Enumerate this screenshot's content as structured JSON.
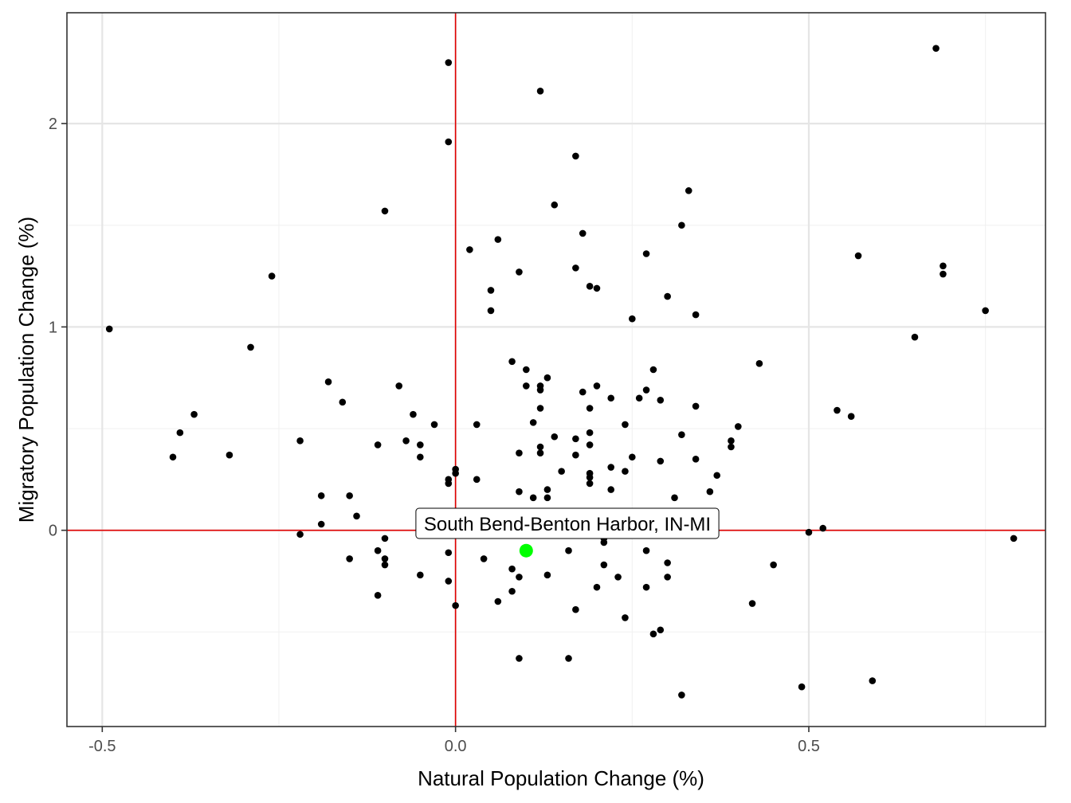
{
  "chart_data": {
    "type": "scatter",
    "xlabel": "Natural Population Change (%)",
    "ylabel": "Migratory Population Change (%)",
    "xlim": [
      -0.55,
      0.835
    ],
    "ylim": [
      -0.965,
      2.545
    ],
    "x_ticks": [
      -0.5,
      0.0,
      0.5
    ],
    "x_tick_labels": [
      "-0.5",
      "0.0",
      "0.5"
    ],
    "y_ticks": [
      0,
      1,
      2
    ],
    "y_tick_labels": [
      "0",
      "1",
      "2"
    ],
    "x_minor_ticks": [
      -0.25,
      0.25,
      0.75
    ],
    "y_minor_ticks": [
      -0.5,
      0.5,
      1.5
    ],
    "grid": true,
    "reference_lines": {
      "x": 0,
      "y": 0,
      "color": "#e00000"
    },
    "point_color": "#000000",
    "highlight": {
      "label": "South Bend-Benton Harbor, IN-MI",
      "x": 0.1,
      "y": -0.1,
      "color": "#00ff00"
    },
    "points": [
      [
        0.68,
        2.37
      ],
      [
        -0.01,
        2.3
      ],
      [
        0.12,
        2.16
      ],
      [
        -0.01,
        1.91
      ],
      [
        0.17,
        1.84
      ],
      [
        0.33,
        1.67
      ],
      [
        0.14,
        1.6
      ],
      [
        -0.1,
        1.57
      ],
      [
        0.32,
        1.5
      ],
      [
        0.18,
        1.46
      ],
      [
        0.06,
        1.43
      ],
      [
        0.02,
        1.38
      ],
      [
        0.27,
        1.36
      ],
      [
        0.57,
        1.35
      ],
      [
        0.69,
        1.3
      ],
      [
        0.17,
        1.29
      ],
      [
        0.09,
        1.27
      ],
      [
        0.69,
        1.26
      ],
      [
        -0.26,
        1.25
      ],
      [
        0.19,
        1.2
      ],
      [
        0.2,
        1.19
      ],
      [
        0.05,
        1.18
      ],
      [
        0.3,
        1.15
      ],
      [
        0.75,
        1.08
      ],
      [
        0.05,
        1.08
      ],
      [
        0.34,
        1.06
      ],
      [
        0.25,
        1.04
      ],
      [
        -0.49,
        0.99
      ],
      [
        0.65,
        0.95
      ],
      [
        -0.29,
        0.9
      ],
      [
        0.08,
        0.83
      ],
      [
        0.43,
        0.82
      ],
      [
        0.1,
        0.79
      ],
      [
        0.28,
        0.79
      ],
      [
        0.13,
        0.75
      ],
      [
        -0.18,
        0.73
      ],
      [
        0.1,
        0.71
      ],
      [
        0.12,
        0.71
      ],
      [
        0.2,
        0.71
      ],
      [
        -0.08,
        0.71
      ],
      [
        0.12,
        0.69
      ],
      [
        0.27,
        0.69
      ],
      [
        0.18,
        0.68
      ],
      [
        0.22,
        0.65
      ],
      [
        0.26,
        0.65
      ],
      [
        0.29,
        0.64
      ],
      [
        -0.16,
        0.63
      ],
      [
        0.34,
        0.61
      ],
      [
        0.12,
        0.6
      ],
      [
        0.19,
        0.6
      ],
      [
        0.54,
        0.59
      ],
      [
        -0.37,
        0.57
      ],
      [
        -0.06,
        0.57
      ],
      [
        0.56,
        0.56
      ],
      [
        0.11,
        0.53
      ],
      [
        -0.03,
        0.52
      ],
      [
        0.03,
        0.52
      ],
      [
        0.24,
        0.52
      ],
      [
        0.4,
        0.51
      ],
      [
        -0.39,
        0.48
      ],
      [
        0.19,
        0.48
      ],
      [
        0.32,
        0.47
      ],
      [
        0.14,
        0.46
      ],
      [
        0.17,
        0.45
      ],
      [
        -0.22,
        0.44
      ],
      [
        -0.07,
        0.44
      ],
      [
        0.39,
        0.44
      ],
      [
        -0.11,
        0.42
      ],
      [
        -0.05,
        0.42
      ],
      [
        0.19,
        0.42
      ],
      [
        0.12,
        0.41
      ],
      [
        0.39,
        0.41
      ],
      [
        0.09,
        0.38
      ],
      [
        0.12,
        0.38
      ],
      [
        -0.32,
        0.37
      ],
      [
        0.17,
        0.37
      ],
      [
        -0.4,
        0.36
      ],
      [
        -0.05,
        0.36
      ],
      [
        0.25,
        0.36
      ],
      [
        0.34,
        0.35
      ],
      [
        0.29,
        0.34
      ],
      [
        0.22,
        0.31
      ],
      [
        0.0,
        0.3
      ],
      [
        0.15,
        0.29
      ],
      [
        0.24,
        0.29
      ],
      [
        0.0,
        0.28
      ],
      [
        0.19,
        0.28
      ],
      [
        0.37,
        0.27
      ],
      [
        0.19,
        0.26
      ],
      [
        -0.01,
        0.25
      ],
      [
        0.03,
        0.25
      ],
      [
        -0.01,
        0.23
      ],
      [
        0.19,
        0.23
      ],
      [
        0.13,
        0.2
      ],
      [
        0.22,
        0.2
      ],
      [
        0.09,
        0.19
      ],
      [
        0.36,
        0.19
      ],
      [
        -0.19,
        0.17
      ],
      [
        -0.15,
        0.17
      ],
      [
        0.11,
        0.16
      ],
      [
        0.13,
        0.16
      ],
      [
        0.31,
        0.16
      ],
      [
        -0.14,
        0.07
      ],
      [
        -0.19,
        0.03
      ],
      [
        0.52,
        0.01
      ],
      [
        -0.22,
        -0.02
      ],
      [
        0.5,
        -0.01
      ],
      [
        -0.1,
        -0.04
      ],
      [
        0.21,
        -0.04
      ],
      [
        0.79,
        -0.04
      ],
      [
        0.21,
        -0.06
      ],
      [
        -0.11,
        -0.1
      ],
      [
        -0.01,
        -0.11
      ],
      [
        0.16,
        -0.1
      ],
      [
        0.27,
        -0.1
      ],
      [
        -0.15,
        -0.14
      ],
      [
        0.04,
        -0.14
      ],
      [
        -0.1,
        -0.14
      ],
      [
        -0.1,
        -0.17
      ],
      [
        0.21,
        -0.17
      ],
      [
        0.3,
        -0.16
      ],
      [
        0.45,
        -0.17
      ],
      [
        0.08,
        -0.19
      ],
      [
        -0.05,
        -0.22
      ],
      [
        0.09,
        -0.23
      ],
      [
        0.13,
        -0.22
      ],
      [
        0.23,
        -0.23
      ],
      [
        -0.01,
        -0.25
      ],
      [
        0.3,
        -0.23
      ],
      [
        0.27,
        -0.28
      ],
      [
        0.08,
        -0.3
      ],
      [
        0.2,
        -0.28
      ],
      [
        -0.11,
        -0.32
      ],
      [
        0.06,
        -0.35
      ],
      [
        0.0,
        -0.37
      ],
      [
        0.42,
        -0.36
      ],
      [
        0.17,
        -0.39
      ],
      [
        0.24,
        -0.43
      ],
      [
        0.29,
        -0.49
      ],
      [
        0.28,
        -0.51
      ],
      [
        0.09,
        -0.63
      ],
      [
        0.16,
        -0.63
      ],
      [
        0.59,
        -0.74
      ],
      [
        0.49,
        -0.77
      ],
      [
        0.32,
        -0.81
      ]
    ]
  }
}
